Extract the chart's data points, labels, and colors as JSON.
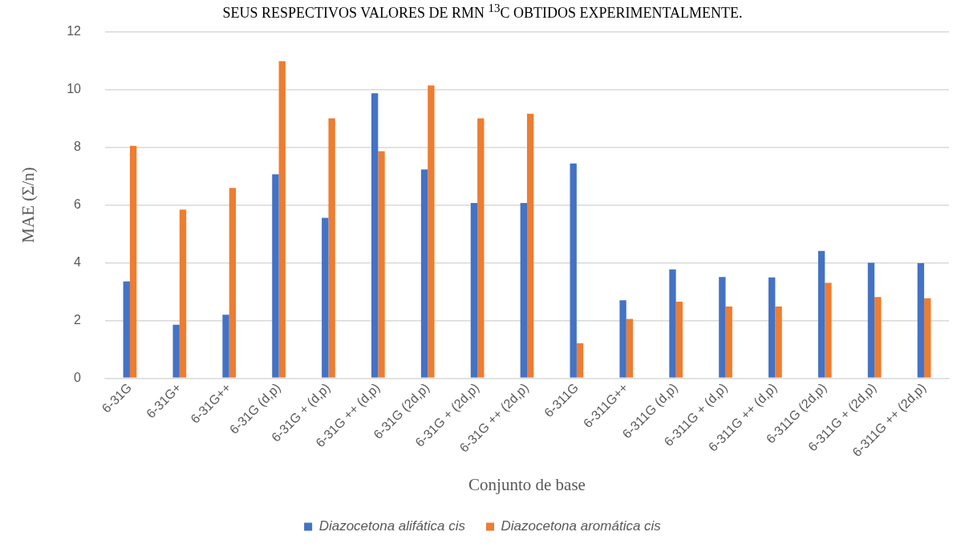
{
  "chart_data": {
    "type": "bar",
    "title": "SEUS RESPECTIVOS VALORES DE RMN $^{13}$C OBTIDOS EXPERIMENTALMENTE.",
    "xlabel": "Conjunto de base",
    "ylabel": "MAE (Σ/n)",
    "categories": [
      "6-31G",
      "6-31G+",
      "6-31G++",
      "6-31G (d,p)",
      "6-31G + (d,p)",
      "6-31G ++ (d,p)",
      "6-31G (2d,p)",
      "6-31G + (2d,p)",
      "6-31G ++ (2d,p)",
      "6-311G",
      "6-311G++",
      "6-311G (d,p)",
      "6-311G + (d,p)",
      "6-311G ++ (d,p)",
      "6-311G (2d,p)",
      "6-311G + (2d,p)",
      "6-311G ++ (2d,p)"
    ],
    "series": [
      {
        "name": "Diazocetona alifática cis",
        "color": "#4472c4",
        "values": [
          3.35,
          1.85,
          2.2,
          7.06,
          5.55,
          9.87,
          7.23,
          6.07,
          6.07,
          7.44,
          2.7,
          3.77,
          3.5,
          3.49,
          4.41,
          4.0,
          3.98
        ]
      },
      {
        "name": "Diazocetona aromática cis",
        "color": "#ed7d31",
        "values": [
          8.05,
          5.84,
          6.59,
          10.98,
          9.0,
          7.86,
          10.14,
          9.0,
          9.16,
          1.21,
          2.05,
          2.65,
          2.48,
          2.48,
          3.3,
          2.81,
          2.77
        ]
      }
    ],
    "ylim": [
      0,
      12
    ],
    "yticks": [
      0,
      2,
      4,
      6,
      8,
      10,
      12
    ],
    "grid": "y",
    "legend": "bottom"
  }
}
